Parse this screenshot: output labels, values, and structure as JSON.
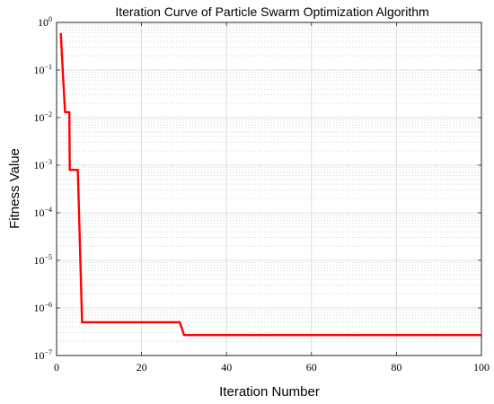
{
  "chart_data": {
    "type": "line",
    "title": "Iteration Curve of Particle Swarm Optimization Algorithm",
    "xlabel": "Iteration Number",
    "ylabel": "Fitness Value",
    "xlim": [
      0,
      100
    ],
    "ylim": [
      1e-07,
      1
    ],
    "yscale": "log",
    "grid": true,
    "xticks": [
      0,
      20,
      40,
      60,
      80,
      100
    ],
    "yticks": [
      {
        "base": "10",
        "exp": "0",
        "value": 1
      },
      {
        "base": "10",
        "exp": "−1",
        "value": 0.1
      },
      {
        "base": "10",
        "exp": "−2",
        "value": 0.01
      },
      {
        "base": "10",
        "exp": "−3",
        "value": 0.001
      },
      {
        "base": "10",
        "exp": "−4",
        "value": 0.0001
      },
      {
        "base": "10",
        "exp": "−5",
        "value": 1e-05
      },
      {
        "base": "10",
        "exp": "−6",
        "value": 1e-06
      },
      {
        "base": "10",
        "exp": "−7",
        "value": 1e-07
      }
    ],
    "series": [
      {
        "color": "#ff0000",
        "x": [
          1,
          1.5,
          2,
          3,
          3.1,
          4,
          4.8,
          5,
          6,
          29,
          30,
          100
        ],
        "y": [
          0.6,
          0.08,
          0.013,
          0.013,
          0.0008,
          0.0008,
          0.0008,
          0.0008,
          5e-07,
          5e-07,
          2.7e-07,
          2.7e-07
        ]
      }
    ]
  }
}
